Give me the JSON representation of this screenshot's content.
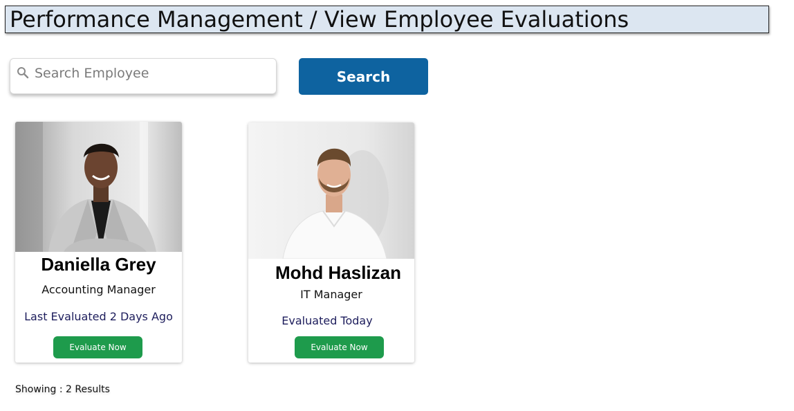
{
  "header": {
    "title": "Performance Management / View Employee Evaluations"
  },
  "search": {
    "icon": "search-icon",
    "placeholder": "Search Employee",
    "value": "",
    "button_label": "Search"
  },
  "employees": [
    {
      "name": "Daniella Grey",
      "role": "Accounting Manager",
      "status": "Last Evaluated 2 Days Ago",
      "button_label": "Evaluate Now"
    },
    {
      "name": "Mohd Haslizan",
      "role": "IT Manager",
      "status": "Evaluated Today",
      "button_label": "Evaluate Now"
    }
  ],
  "results": {
    "label": "Showing",
    "count_text": " : 2 Results"
  },
  "colors": {
    "header_bg": "#dce6f1",
    "primary": "#0e63a0",
    "success": "#1e9b4c",
    "status_text": "#1d1d5c"
  }
}
